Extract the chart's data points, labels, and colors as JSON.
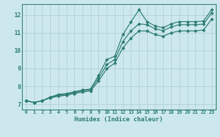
{
  "xlabel": "Humidex (Indice chaleur)",
  "bg_color": "#cce8ee",
  "grid_color": "#aacccc",
  "line_color": "#2d7d6e",
  "x_ticks": [
    0,
    1,
    2,
    3,
    4,
    5,
    6,
    7,
    8,
    9,
    10,
    11,
    12,
    13,
    14,
    15,
    16,
    17,
    18,
    19,
    20,
    21,
    22,
    23
  ],
  "y_ticks": [
    7,
    8,
    9,
    10,
    11,
    12
  ],
  "ylim": [
    6.7,
    12.6
  ],
  "xlim": [
    -0.5,
    23.5
  ],
  "y_main": [
    7.2,
    7.1,
    7.2,
    7.4,
    7.55,
    7.6,
    7.7,
    7.8,
    7.85,
    8.62,
    9.5,
    9.68,
    10.9,
    11.6,
    12.28,
    11.62,
    11.38,
    11.28,
    11.5,
    11.62,
    11.62,
    11.62,
    11.65,
    12.28
  ],
  "y_mid": [
    7.2,
    7.1,
    7.2,
    7.38,
    7.5,
    7.55,
    7.65,
    7.75,
    7.82,
    8.45,
    9.22,
    9.5,
    10.5,
    11.1,
    11.5,
    11.45,
    11.22,
    11.12,
    11.32,
    11.45,
    11.45,
    11.45,
    11.48,
    12.1
  ],
  "y_low": [
    7.2,
    7.1,
    7.2,
    7.35,
    7.45,
    7.5,
    7.6,
    7.68,
    7.75,
    8.3,
    8.98,
    9.3,
    10.15,
    10.7,
    11.1,
    11.1,
    10.9,
    10.8,
    11.0,
    11.1,
    11.1,
    11.1,
    11.15,
    11.75
  ]
}
